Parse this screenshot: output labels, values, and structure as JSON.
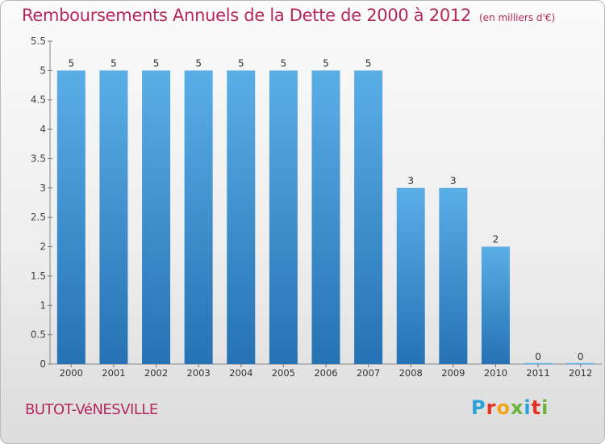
{
  "header": {
    "title": "Remboursements Annuels de la Dette de 2000 à 2012",
    "subtitle": "(en milliers d'€)"
  },
  "footer": {
    "commune": "BUTOT-VéNESVILLE",
    "logo_letters": [
      "P",
      "r",
      "o",
      "x",
      "i",
      "t",
      "i"
    ]
  },
  "colors": {
    "title": "#b5285e",
    "bar_top": "#5aaee6",
    "bar_bottom": "#2672b4"
  },
  "chart_data": {
    "type": "bar",
    "categories": [
      "2000",
      "2001",
      "2002",
      "2003",
      "2004",
      "2005",
      "2006",
      "2007",
      "2008",
      "2009",
      "2010",
      "2011",
      "2012"
    ],
    "values": [
      5,
      5,
      5,
      5,
      5,
      5,
      5,
      5,
      3,
      3,
      2,
      0,
      0
    ],
    "ylim": [
      0,
      5.5
    ],
    "yticks": [
      "0",
      "0.5",
      "1",
      "1.5",
      "2",
      "2.5",
      "3",
      "3.5",
      "4",
      "4.5",
      "5",
      "5.5"
    ],
    "grid": false,
    "data_labels": true
  }
}
